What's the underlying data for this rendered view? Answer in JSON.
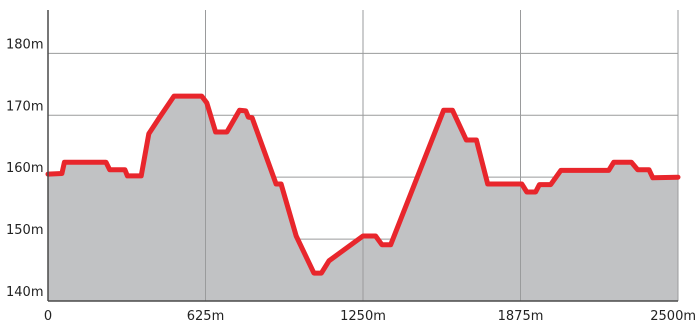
{
  "chart_data": {
    "type": "area",
    "title": "",
    "xlabel": "",
    "ylabel": "",
    "x_unit": "m",
    "y_unit": "m",
    "xlim": [
      0,
      2500
    ],
    "ylim": [
      140,
      187
    ],
    "grid": "vertical lines at x ticks, horizontal lines at y ticks",
    "x_ticks": [
      0,
      625,
      1250,
      1875,
      2500
    ],
    "x_tick_labels": [
      "0",
      "625m",
      "1250m",
      "1875m",
      "2500m"
    ],
    "y_ticks": [
      140,
      150,
      160,
      170,
      180
    ],
    "y_tick_labels": [
      "140m",
      "150m",
      "160m",
      "170m",
      "180m"
    ],
    "series": [
      {
        "x": [
          0,
          55,
          65,
          230,
          245,
          305,
          315,
          370,
          400,
          440,
          500,
          520,
          610,
          630,
          665,
          710,
          760,
          785,
          795,
          810,
          905,
          925,
          985,
          1055,
          1085,
          1115,
          1250,
          1300,
          1325,
          1360,
          1570,
          1605,
          1660,
          1700,
          1745,
          1880,
          1900,
          1935,
          1950,
          1995,
          2035,
          2065,
          2225,
          2245,
          2315,
          2340,
          2385,
          2400,
          2500
        ],
        "y": [
          160.5,
          160.6,
          162.4,
          162.4,
          161.2,
          161.2,
          160.2,
          160.2,
          167,
          169.5,
          173.1,
          173.1,
          173.1,
          172,
          167.3,
          167.3,
          170.8,
          170.7,
          169.7,
          169.6,
          158.9,
          158.9,
          150.5,
          144.5,
          144.5,
          146.5,
          150.5,
          150.5,
          149.1,
          149.1,
          170.8,
          170.8,
          166,
          166,
          158.9,
          158.9,
          157.6,
          157.6,
          158.8,
          158.8,
          161.1,
          161.1,
          161.1,
          162.4,
          162.4,
          161.2,
          161.2,
          159.9,
          160
        ]
      }
    ],
    "colors": {
      "line": "#e8262c",
      "fill": "#c1c2c4",
      "grid": "#9a9b9c",
      "axis": "#4a4a4a"
    }
  }
}
